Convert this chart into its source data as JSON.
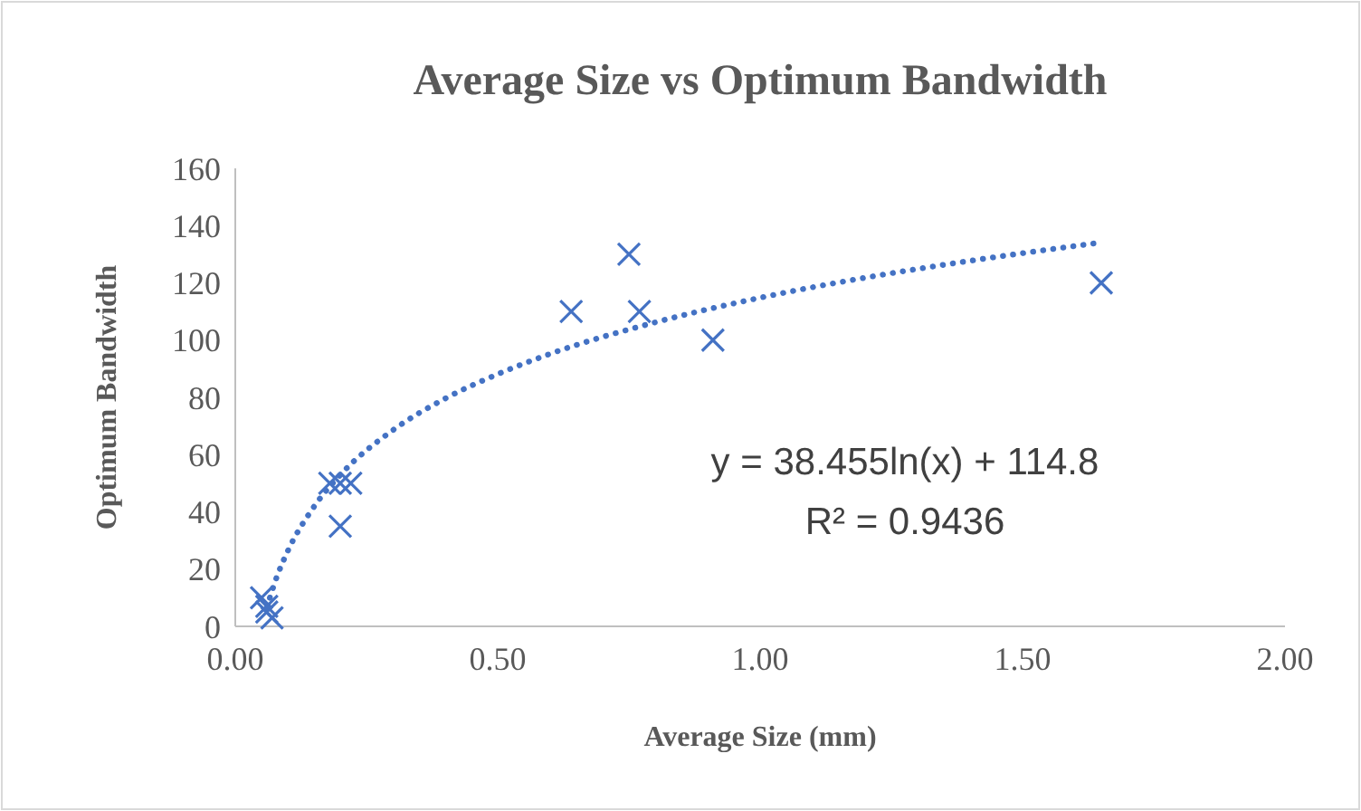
{
  "chart_data": {
    "type": "scatter",
    "title": "Average Size vs Optimum Bandwidth",
    "xlabel": "Average Size (mm)",
    "ylabel": "Optimum Bandwidth",
    "xlim": [
      0,
      2
    ],
    "xticks": [
      {
        "value": 0,
        "label": "0.00"
      },
      {
        "value": 0.5,
        "label": "0.50"
      },
      {
        "value": 1,
        "label": "1.00"
      },
      {
        "value": 1.5,
        "label": "1.50"
      },
      {
        "value": 2,
        "label": "2.00"
      }
    ],
    "ylim": [
      0,
      160
    ],
    "yticks": [
      0,
      20,
      40,
      60,
      80,
      100,
      120,
      140,
      160
    ],
    "grid": false,
    "marker": "cross",
    "series": [
      {
        "color": "#4472c4",
        "x": [
          0.05,
          0.06,
          0.06,
          0.07,
          0.18,
          0.2,
          0.22,
          0.2,
          0.64,
          0.75,
          0.77,
          0.91,
          1.65
        ],
        "values": [
          10,
          7,
          5,
          3,
          50,
          50,
          50,
          35,
          110,
          130,
          110,
          100,
          120
        ]
      },
      {
        "type": "line",
        "color": "#4472c4",
        "line_style": "dotted",
        "marker": "none",
        "x": [
          0.06,
          0.08,
          0.1,
          0.15,
          0.2,
          0.3,
          0.4,
          0.5,
          0.6,
          0.8,
          1.0,
          1.2,
          1.4,
          1.65
        ],
        "values": [
          6.6,
          17.7,
          26.3,
          41.8,
          52.9,
          68.5,
          79.6,
          88.1,
          95.2,
          106.2,
          114.8,
          121.8,
          127.7,
          134.1
        ]
      }
    ],
    "annotations": [
      "y = 38.455ln(x) + 114.8",
      "R² = 0.9436"
    ]
  }
}
